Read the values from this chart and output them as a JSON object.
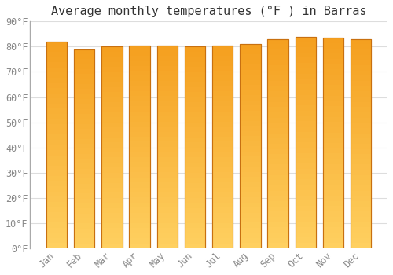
{
  "title": "Average monthly temperatures (°F ) in Barras",
  "months": [
    "Jan",
    "Feb",
    "Mar",
    "Apr",
    "May",
    "Jun",
    "Jul",
    "Aug",
    "Sep",
    "Oct",
    "Nov",
    "Dec"
  ],
  "values": [
    82,
    79,
    80,
    80.5,
    80.5,
    80,
    80.5,
    81,
    83,
    84,
    83.5,
    83
  ],
  "bar_color_top": "#F5A020",
  "bar_color_bottom": "#FFD060",
  "bar_edge_color": "#C87010",
  "background_color": "#ffffff",
  "plot_bg_color": "#ffffff",
  "ylim": [
    0,
    90
  ],
  "ytick_step": 10,
  "title_fontsize": 11,
  "tick_fontsize": 8.5,
  "grid_color": "#dddddd",
  "bar_width": 0.75
}
